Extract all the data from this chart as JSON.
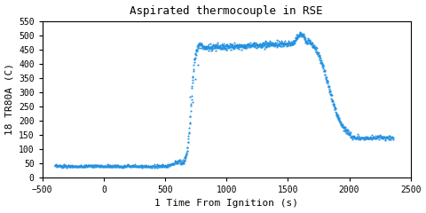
{
  "title": "Aspirated thermocouple in RSE",
  "xlabel": "1 Time From Ignition (s)",
  "ylabel": "18 TR80A (C)",
  "xlim": [
    -500,
    2500
  ],
  "ylim": [
    0,
    550
  ],
  "xticks": [
    -500,
    0,
    500,
    1000,
    1500,
    2000,
    2500
  ],
  "yticks": [
    0,
    50,
    100,
    150,
    200,
    250,
    300,
    350,
    400,
    450,
    500,
    550
  ],
  "marker_color": "#2090e0",
  "marker_size": 2.5,
  "bg_color": "#ffffff",
  "font_family": "monospace",
  "title_fontsize": 9,
  "label_fontsize": 8,
  "tick_fontsize": 7
}
